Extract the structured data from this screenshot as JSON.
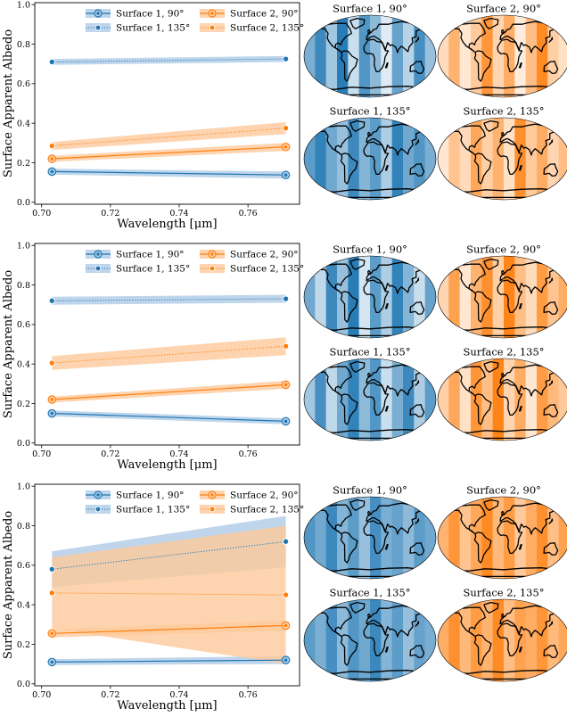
{
  "colors": {
    "surface1": "#1f77b4",
    "surface2": "#ff7f0e",
    "surface1_band": "#aecbe6",
    "surface2_band": "#fdc99b"
  },
  "chart_data": [
    {
      "type": "line",
      "xlabel": "Wavelength [μm]",
      "ylabel": "Surface Apparent Albedo",
      "xlim": [
        0.698,
        0.775
      ],
      "ylim": [
        -0.01,
        1.01
      ],
      "xticks": [
        0.7,
        0.72,
        0.74,
        0.76
      ],
      "yticks": [
        0.0,
        0.2,
        0.4,
        0.6,
        0.8,
        1.0
      ],
      "x": [
        0.703,
        0.771
      ],
      "grid": false,
      "legend": "top",
      "series": [
        {
          "name": "Surface 1, 90°",
          "color": "surface1",
          "style": "solid",
          "values": [
            0.155,
            0.138
          ],
          "lower": [
            0.14,
            0.12
          ],
          "upper": [
            0.17,
            0.155
          ]
        },
        {
          "name": "Surface 2, 90°",
          "color": "surface2",
          "style": "solid",
          "values": [
            0.22,
            0.28
          ],
          "lower": [
            0.205,
            0.26
          ],
          "upper": [
            0.235,
            0.3
          ]
        },
        {
          "name": "Surface 1, 135°",
          "color": "surface1",
          "style": "dotted",
          "values": [
            0.71,
            0.725
          ],
          "lower": [
            0.695,
            0.71
          ],
          "upper": [
            0.725,
            0.74
          ]
        },
        {
          "name": "Surface 2, 135°",
          "color": "surface2",
          "style": "dotted",
          "values": [
            0.285,
            0.375
          ],
          "lower": [
            0.265,
            0.345
          ],
          "upper": [
            0.305,
            0.405
          ]
        }
      ],
      "maps": [
        {
          "title": "Surface 1, 90°",
          "palette": "surface1",
          "stripes": [
            0.55,
            0.85,
            0.35,
            0.95,
            0.15,
            0.75,
            0.45,
            0.05,
            0.65,
            0.25,
            0.8,
            0.4
          ]
        },
        {
          "title": "Surface 2, 90°",
          "palette": "surface2",
          "stripes": [
            0.2,
            0.55,
            0.1,
            0.35,
            0.8,
            0.25,
            0.6,
            0.05,
            0.45,
            0.9,
            0.3,
            0.15
          ]
        },
        {
          "title": "Surface 1, 135°",
          "palette": "surface1",
          "stripes": [
            0.7,
            0.9,
            0.6,
            0.4,
            0.85,
            0.5,
            0.7,
            0.3,
            0.9,
            0.6,
            0.75,
            0.55
          ]
        },
        {
          "title": "Surface 2, 135°",
          "palette": "surface2",
          "stripes": [
            0.1,
            0.4,
            0.2,
            0.65,
            0.3,
            0.55,
            0.15,
            0.85,
            0.35,
            0.6,
            0.25,
            0.45
          ]
        }
      ]
    },
    {
      "type": "line",
      "xlabel": "Wavelength [μm]",
      "ylabel": "Surface Apparent Albedo",
      "xlim": [
        0.698,
        0.775
      ],
      "ylim": [
        -0.01,
        1.01
      ],
      "xticks": [
        0.7,
        0.72,
        0.74,
        0.76
      ],
      "yticks": [
        0.0,
        0.2,
        0.4,
        0.6,
        0.8,
        1.0
      ],
      "x": [
        0.703,
        0.771
      ],
      "grid": false,
      "legend": "top",
      "series": [
        {
          "name": "Surface 1, 90°",
          "color": "surface1",
          "style": "solid",
          "values": [
            0.15,
            0.11
          ],
          "lower": [
            0.135,
            0.095
          ],
          "upper": [
            0.165,
            0.125
          ]
        },
        {
          "name": "Surface 2, 90°",
          "color": "surface2",
          "style": "solid",
          "values": [
            0.22,
            0.295
          ],
          "lower": [
            0.205,
            0.275
          ],
          "upper": [
            0.235,
            0.315
          ]
        },
        {
          "name": "Surface 1, 135°",
          "color": "surface1",
          "style": "dotted",
          "values": [
            0.72,
            0.73
          ],
          "lower": [
            0.7,
            0.71
          ],
          "upper": [
            0.74,
            0.75
          ]
        },
        {
          "name": "Surface 2, 135°",
          "color": "surface2",
          "style": "dotted",
          "values": [
            0.405,
            0.49
          ],
          "lower": [
            0.37,
            0.445
          ],
          "upper": [
            0.44,
            0.535
          ]
        }
      ],
      "maps": [
        {
          "title": "Surface 1, 90°",
          "palette": "surface1",
          "stripes": [
            0.6,
            0.2,
            0.85,
            0.4,
            0.95,
            0.1,
            0.7,
            0.3,
            0.9,
            0.5,
            0.15,
            0.65
          ]
        },
        {
          "title": "Surface 2, 90°",
          "palette": "surface2",
          "stripes": [
            0.25,
            0.7,
            0.1,
            0.55,
            0.85,
            0.3,
            0.95,
            0.45,
            0.2,
            0.75,
            0.4,
            0.6
          ]
        },
        {
          "title": "Surface 1, 135°",
          "palette": "surface1",
          "stripes": [
            0.35,
            0.8,
            0.2,
            0.6,
            0.9,
            0.45,
            0.75,
            0.15,
            0.55,
            0.85,
            0.3,
            0.7
          ]
        },
        {
          "title": "Surface 2, 135°",
          "palette": "surface2",
          "stripes": [
            0.3,
            0.65,
            0.15,
            0.8,
            0.45,
            0.95,
            0.25,
            0.6,
            0.1,
            0.75,
            0.5,
            0.35
          ]
        }
      ]
    },
    {
      "type": "line",
      "xlabel": "Wavelength [μm]",
      "ylabel": "Surface Apparent Albedo",
      "xlim": [
        0.698,
        0.775
      ],
      "ylim": [
        -0.01,
        1.01
      ],
      "xticks": [
        0.7,
        0.72,
        0.74,
        0.76
      ],
      "yticks": [
        0.0,
        0.2,
        0.4,
        0.6,
        0.8,
        1.0
      ],
      "x": [
        0.703,
        0.771
      ],
      "grid": false,
      "legend": "top",
      "series": [
        {
          "name": "Surface 1, 90°",
          "color": "surface1",
          "style": "solid",
          "values": [
            0.11,
            0.12
          ],
          "lower": [
            0.095,
            0.1
          ],
          "upper": [
            0.125,
            0.14
          ]
        },
        {
          "name": "Surface 2, 90°",
          "color": "surface2",
          "style": "solid",
          "values": [
            0.255,
            0.295
          ],
          "lower": [
            0.235,
            0.27
          ],
          "upper": [
            0.275,
            0.32
          ]
        },
        {
          "name": "Surface 1, 135°",
          "color": "surface1",
          "style": "dotted",
          "values": [
            0.58,
            0.72
          ],
          "lower": [
            0.49,
            0.59
          ],
          "upper": [
            0.67,
            0.85
          ]
        },
        {
          "name": "Surface 2, 135°",
          "color": "surface2",
          "style": "dotted",
          "values": [
            0.46,
            0.45
          ],
          "lower": [
            0.28,
            0.1
          ],
          "upper": [
            0.64,
            0.8
          ]
        }
      ],
      "maps": [
        {
          "title": "Surface 1, 90°",
          "palette": "surface1",
          "stripes": [
            0.75,
            0.6,
            0.85,
            0.5,
            0.7,
            0.4,
            0.8,
            0.55,
            0.65,
            0.45,
            0.7,
            0.6
          ]
        },
        {
          "title": "Surface 2, 90°",
          "palette": "surface2",
          "stripes": [
            0.55,
            0.8,
            0.4,
            0.65,
            0.9,
            0.5,
            0.75,
            0.35,
            0.6,
            0.85,
            0.45,
            0.7
          ]
        },
        {
          "title": "Surface 1, 135°",
          "palette": "surface1",
          "stripes": [
            0.7,
            0.55,
            0.8,
            0.45,
            0.75,
            0.6,
            0.85,
            0.5,
            0.7,
            0.4,
            0.65,
            0.55
          ]
        },
        {
          "title": "Surface 2, 135°",
          "palette": "surface2",
          "stripes": [
            0.6,
            0.85,
            0.5,
            0.75,
            0.55,
            0.9,
            0.45,
            0.7,
            0.6,
            0.8,
            0.5,
            0.65
          ]
        }
      ]
    }
  ]
}
